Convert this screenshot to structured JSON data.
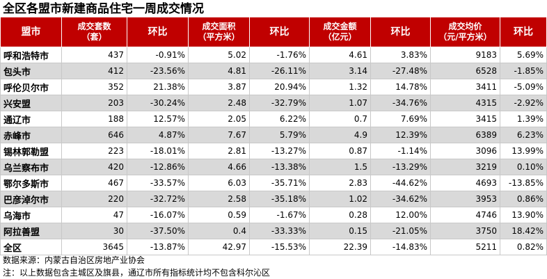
{
  "title": "全区各盟市新建商品住宅一周成交情况",
  "headers": [
    {
      "line1": "盟市",
      "line2": ""
    },
    {
      "line1": "成交套数",
      "line2": "（套）"
    },
    {
      "line1": "环比",
      "line2": ""
    },
    {
      "line1": "成交面积",
      "line2": "（平方米）"
    },
    {
      "line1": "环比",
      "line2": ""
    },
    {
      "line1": "成交金额",
      "line2": "（亿元）"
    },
    {
      "line1": "环比",
      "line2": ""
    },
    {
      "line1": "成交均价",
      "line2": "（元/平方米）"
    },
    {
      "line1": "环比",
      "line2": ""
    }
  ],
  "rows": [
    [
      "呼和浩特市",
      "437",
      "-0.91%",
      "5.02",
      "-1.76%",
      "4.61",
      "3.83%",
      "9183",
      "5.69%"
    ],
    [
      "包头市",
      "412",
      "-23.56%",
      "4.81",
      "-26.11%",
      "3.14",
      "-27.48%",
      "6528",
      "-1.85%"
    ],
    [
      "呼伦贝尔市",
      "352",
      "21.38%",
      "3.87",
      "20.94%",
      "1.32",
      "14.78%",
      "3411",
      "-5.09%"
    ],
    [
      "兴安盟",
      "203",
      "-30.24%",
      "2.48",
      "-32.79%",
      "1.07",
      "-34.76%",
      "4315",
      "-2.92%"
    ],
    [
      "通辽市",
      "188",
      "12.57%",
      "2.05",
      "6.22%",
      "0.7",
      "7.69%",
      "3415",
      "1.39%"
    ],
    [
      "赤峰市",
      "646",
      "4.87%",
      "7.67",
      "5.79%",
      "4.9",
      "12.39%",
      "6389",
      "6.23%"
    ],
    [
      "锡林郭勒盟",
      "223",
      "-18.01%",
      "2.81",
      "-13.27%",
      "0.87",
      "-1.14%",
      "3096",
      "13.99%"
    ],
    [
      "乌兰察布市",
      "420",
      "-12.86%",
      "4.66",
      "-13.38%",
      "1.5",
      "-13.29%",
      "3219",
      "0.10%"
    ],
    [
      "鄂尔多斯市",
      "467",
      "-33.57%",
      "6.03",
      "-35.71%",
      "2.83",
      "-44.62%",
      "4693",
      "-13.85%"
    ],
    [
      "巴彦淖尔市",
      "220",
      "-32.72%",
      "2.58",
      "-35.18%",
      "1.02",
      "-34.62%",
      "3953",
      "0.86%"
    ],
    [
      "乌海市",
      "47",
      "-16.07%",
      "0.59",
      "-1.67%",
      "0.28",
      "12.00%",
      "4746",
      "13.90%"
    ],
    [
      "阿拉善盟",
      "30",
      "-37.50%",
      "0.4",
      "-33.33%",
      "0.15",
      "-21.05%",
      "3750",
      "18.42%"
    ],
    [
      "全区",
      "3645",
      "-13.87%",
      "42.97",
      "-15.53%",
      "22.39",
      "-14.83%",
      "5211",
      "0.82%"
    ]
  ],
  "notes": {
    "source": "数据来源：内蒙古自治区房地产业协会",
    "remark": "注：以上数据包含主城区及旗县，通辽市所有指标统计均不包含科尔沁区"
  },
  "colors": {
    "header_bg": "#c00000",
    "header_text": "#ffffff",
    "alt_row_bg": "#d9d9d9"
  }
}
